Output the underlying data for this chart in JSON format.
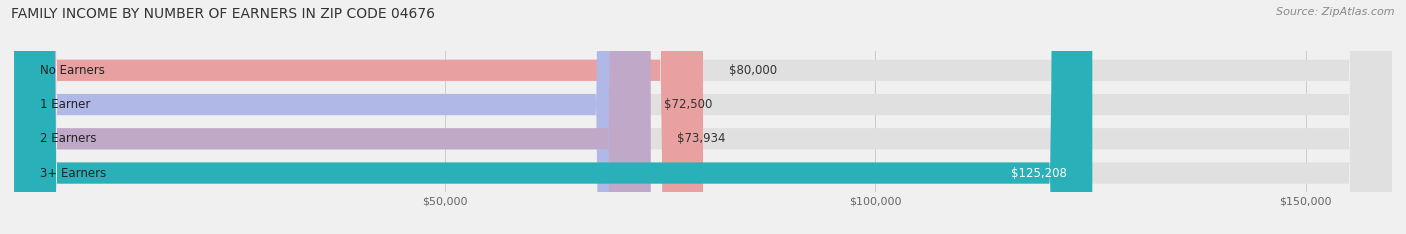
{
  "title": "FAMILY INCOME BY NUMBER OF EARNERS IN ZIP CODE 04676",
  "source": "Source: ZipAtlas.com",
  "categories": [
    "No Earners",
    "1 Earner",
    "2 Earners",
    "3+ Earners"
  ],
  "values": [
    80000,
    72500,
    73934,
    125208
  ],
  "bar_colors": [
    "#e8a0a0",
    "#b0b8e8",
    "#c0a8c8",
    "#2ab0b8"
  ],
  "value_labels": [
    "$80,000",
    "$72,500",
    "$73,934",
    "$125,208"
  ],
  "value_label_colors": [
    "#333333",
    "#333333",
    "#333333",
    "#ffffff"
  ],
  "xlim": [
    0,
    160000
  ],
  "xticks": [
    50000,
    100000,
    150000
  ],
  "xtick_labels": [
    "$50,000",
    "$100,000",
    "$150,000"
  ],
  "bg_color": "#f0f0f0",
  "bar_bg_color": "#e0e0e0",
  "title_fontsize": 10,
  "source_fontsize": 8,
  "label_fontsize": 8.5,
  "value_fontsize": 8.5,
  "bar_height": 0.62
}
